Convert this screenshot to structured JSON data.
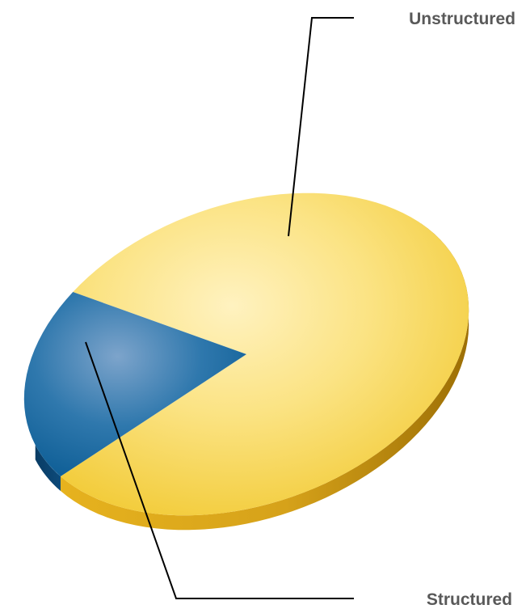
{
  "chart_data": {
    "type": "pie",
    "title": "",
    "categories": [
      "Unstructured",
      "Structured"
    ],
    "values": [
      80,
      20
    ],
    "colors": [
      "#f5d256",
      "#14679f"
    ],
    "three_d": true,
    "legend": "none",
    "labels_with_leader_lines": true
  }
}
